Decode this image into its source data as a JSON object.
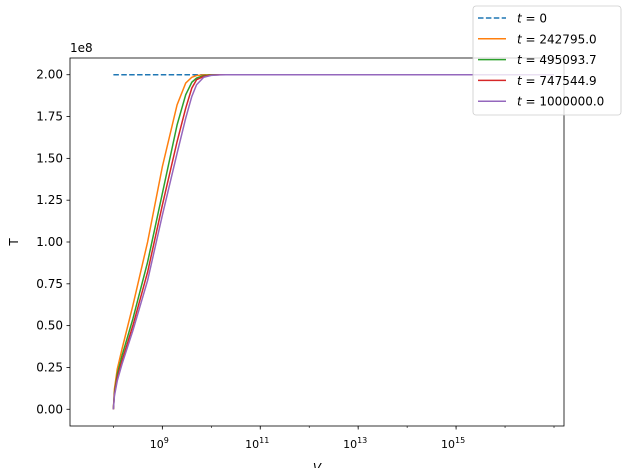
{
  "chart_data": {
    "type": "line",
    "title": "",
    "xlabel": "V",
    "ylabel": "T",
    "xscale": "log",
    "xlim": [
      13000000.0,
      1.6e+17
    ],
    "ylim": [
      -10000000.0,
      210000000.0
    ],
    "grid": false,
    "y_offset_label": "1e8",
    "x_ticks": [
      {
        "value": 1000000000.0,
        "mantissa": "10",
        "exponent": "9"
      },
      {
        "value": 100000000000.0,
        "mantissa": "10",
        "exponent": "11"
      },
      {
        "value": 10000000000000.0,
        "mantissa": "10",
        "exponent": "13"
      },
      {
        "value": 1000000000000000.0,
        "mantissa": "10",
        "exponent": "15"
      }
    ],
    "y_ticks": [
      {
        "value": 0,
        "label": "0.00"
      },
      {
        "value": 25000000,
        "label": "0.25"
      },
      {
        "value": 50000000,
        "label": "0.50"
      },
      {
        "value": 75000000,
        "label": "0.75"
      },
      {
        "value": 100000000,
        "label": "1.00"
      },
      {
        "value": 125000000,
        "label": "1.25"
      },
      {
        "value": 150000000,
        "label": "1.50"
      },
      {
        "value": 175000000,
        "label": "1.75"
      },
      {
        "value": 200000000,
        "label": "2.00"
      }
    ],
    "legend": {
      "placement": "top-right"
    },
    "series": [
      {
        "name_italic": "t",
        "name_rest": " = 0",
        "color": "#1f77b4",
        "dash": true,
        "x": [
          100000000.0,
          1e+17
        ],
        "y": [
          200000000.0,
          200000000.0
        ]
      },
      {
        "name_italic": "t",
        "name_rest": " = 242795.0",
        "color": "#ff7f0e",
        "dash": false,
        "x": [
          100000000.0,
          105000000.0,
          120000000.0,
          150000000.0,
          250000000.0,
          500000000.0,
          1000000000.0,
          2000000000.0,
          3000000000.0,
          4000000000.0,
          5000000000.0,
          7000000000.0,
          10000000000.0,
          1e+17
        ],
        "y": [
          0,
          12000000.0,
          24000000.0,
          36000000.0,
          62000000.0,
          100000000.0,
          145000000.0,
          182000000.0,
          195000000.0,
          198500000.0,
          199500000.0,
          199900000.0,
          200000000.0,
          200000000.0
        ]
      },
      {
        "name_italic": "t",
        "name_rest": " = 495093.7",
        "color": "#2ca02c",
        "dash": false,
        "x": [
          100000000.0,
          105000000.0,
          120000000.0,
          150000000.0,
          250000000.0,
          500000000.0,
          1000000000.0,
          2000000000.0,
          3000000000.0,
          4000000000.0,
          5000000000.0,
          7000000000.0,
          10000000000.0,
          15000000000.0,
          1e+17
        ],
        "y": [
          0,
          10000000.0,
          21000000.0,
          32000000.0,
          54000000.0,
          88000000.0,
          129000000.0,
          170000000.0,
          188000000.0,
          195500000.0,
          198000000.0,
          199500000.0,
          199900000.0,
          200000000.0,
          200000000.0
        ]
      },
      {
        "name_italic": "t",
        "name_rest": " = 747544.9",
        "color": "#d62728",
        "dash": false,
        "x": [
          100000000.0,
          105000000.0,
          120000000.0,
          150000000.0,
          250000000.0,
          500000000.0,
          1000000000.0,
          2000000000.0,
          3000000000.0,
          4000000000.0,
          5000000000.0,
          7000000000.0,
          10000000000.0,
          15000000000.0,
          1e+17
        ],
        "y": [
          0,
          9000000.0,
          19000000.0,
          29000000.0,
          50000000.0,
          82000000.0,
          122000000.0,
          160000000.0,
          180000000.0,
          192000000.0,
          197000000.0,
          199000000.0,
          199800000.0,
          200000000.0,
          200000000.0
        ]
      },
      {
        "name_italic": "t",
        "name_rest": " = 1000000.0",
        "color": "#9467bd",
        "dash": false,
        "x": [
          100000000.0,
          105000000.0,
          120000000.0,
          150000000.0,
          250000000.0,
          500000000.0,
          1000000000.0,
          2000000000.0,
          3000000000.0,
          4000000000.0,
          5000000000.0,
          7000000000.0,
          10000000000.0,
          15000000000.0,
          20000000000.0,
          1e+17
        ],
        "y": [
          0,
          8000000.0,
          17000000.0,
          27000000.0,
          47000000.0,
          77000000.0,
          116000000.0,
          153000000.0,
          174000000.0,
          187000000.0,
          194000000.0,
          198500000.0,
          199600000.0,
          199900000.0,
          200000000.0,
          200000000.0
        ]
      }
    ]
  }
}
